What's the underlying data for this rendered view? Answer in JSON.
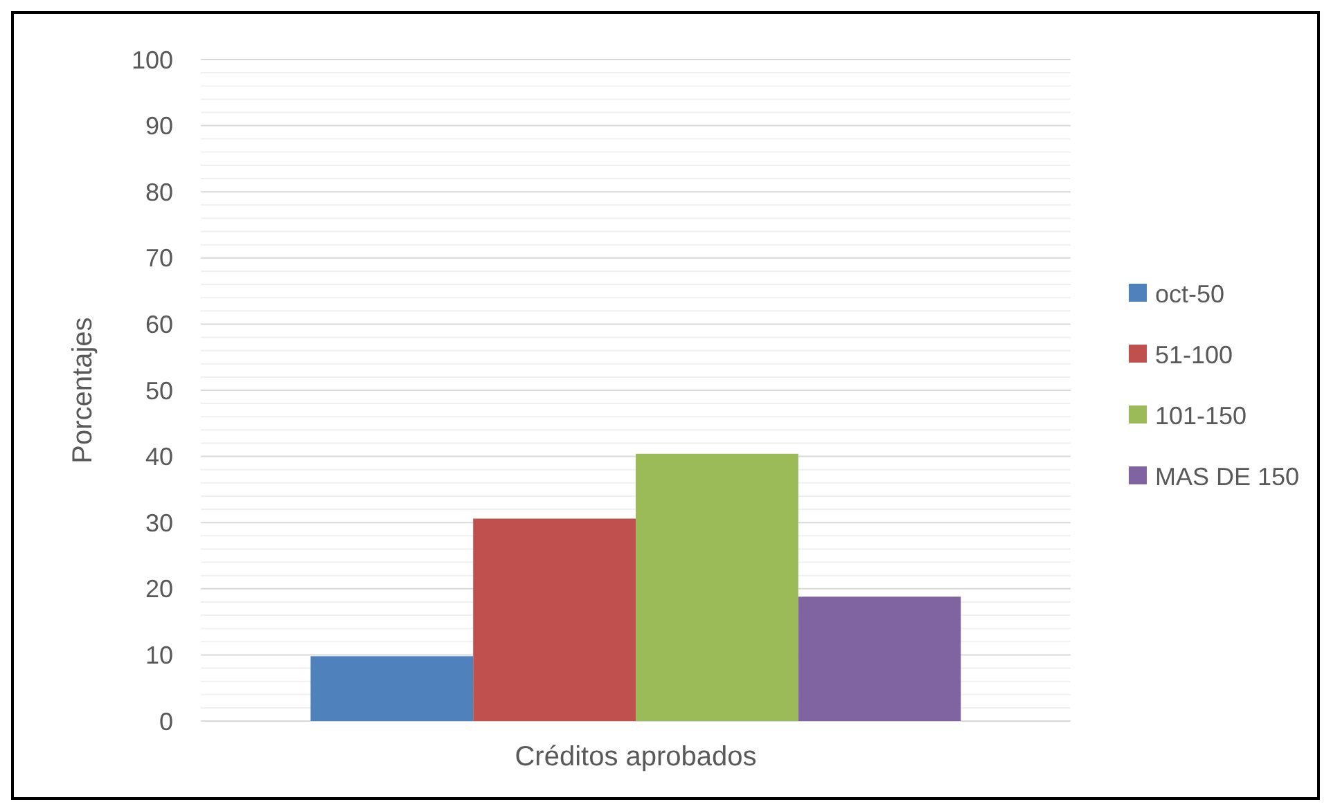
{
  "chart_data": {
    "type": "bar",
    "xlabel": "Créditos aprobados",
    "ylabel": "Porcentajes",
    "categories": [
      null
    ],
    "series": [
      {
        "name": "oct-50",
        "color": "#4f81bd",
        "values": [
          9.8
        ]
      },
      {
        "name": "51-100",
        "color": "#c0504d",
        "values": [
          30.6
        ]
      },
      {
        "name": "101-150",
        "color": "#9bbb59",
        "values": [
          40.4
        ]
      },
      {
        "name": "MAS DE 150",
        "color": "#8064a2",
        "values": [
          18.8
        ]
      }
    ],
    "ylim": [
      0,
      100
    ],
    "yticks": [
      0,
      {
        "value": 2,
        "label": null
      },
      {
        "value": 4,
        "label": null
      },
      {
        "value": 6,
        "label": null
      },
      {
        "value": 8,
        "label": null
      },
      10,
      {
        "value": 12,
        "label": null
      },
      {
        "value": 14,
        "label": null
      },
      {
        "value": 16,
        "label": null
      },
      {
        "value": 18,
        "label": null
      },
      20,
      {
        "value": 22,
        "label": null
      },
      {
        "value": 24,
        "label": null
      },
      {
        "value": 26,
        "label": null
      },
      {
        "value": 28,
        "label": null
      },
      30,
      {
        "value": 32,
        "label": null
      },
      {
        "value": 34,
        "label": null
      },
      {
        "value": 36,
        "label": null
      },
      {
        "value": 38,
        "label": null
      },
      40,
      {
        "value": 42,
        "label": null
      },
      {
        "value": 44,
        "label": null
      },
      {
        "value": 46,
        "label": null
      },
      {
        "value": 48,
        "label": null
      },
      50,
      {
        "value": 52,
        "label": null
      },
      {
        "value": 54,
        "label": null
      },
      {
        "value": 56,
        "label": null
      },
      {
        "value": 58,
        "label": null
      },
      60,
      {
        "value": 62,
        "label": null
      },
      {
        "value": 64,
        "label": null
      },
      {
        "value": 66,
        "label": null
      },
      {
        "value": 68,
        "label": null
      },
      70,
      {
        "value": 72,
        "label": null
      },
      {
        "value": 74,
        "label": null
      },
      {
        "value": 76,
        "label": null
      },
      {
        "value": 78,
        "label": null
      },
      80,
      {
        "value": 82,
        "label": null
      },
      {
        "value": 84,
        "label": null
      },
      {
        "value": 86,
        "label": null
      },
      {
        "value": 88,
        "label": null
      },
      90,
      {
        "value": 92,
        "label": null
      },
      {
        "value": 94,
        "label": null
      },
      {
        "value": 96,
        "label": null
      },
      {
        "value": 98,
        "label": null
      },
      100
    ],
    "grid": "y",
    "legend": "right"
  }
}
